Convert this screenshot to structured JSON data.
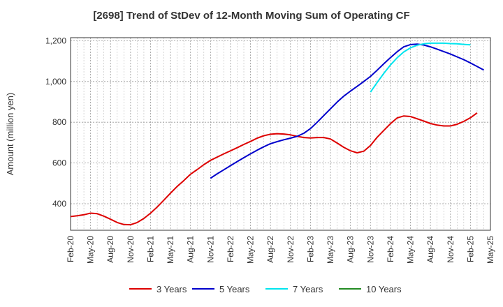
{
  "chart_data": {
    "type": "line",
    "title": "[2698]  Trend of StDev of 12-Month Moving Sum of Operating CF",
    "ylabel": "Amount (million yen)",
    "xlabel": "",
    "ylim": [
      270,
      1215
    ],
    "yticks": [
      400,
      600,
      800,
      "1,000",
      "1,200"
    ],
    "ytick_values": [
      400,
      600,
      800,
      1000,
      1200
    ],
    "xticks": [
      "Feb-20",
      "May-20",
      "Aug-20",
      "Nov-20",
      "Feb-21",
      "May-21",
      "Aug-21",
      "Nov-21",
      "Feb-22",
      "May-22",
      "Aug-22",
      "Nov-22",
      "Feb-23",
      "May-23",
      "Aug-23",
      "Nov-23",
      "Feb-24",
      "May-24",
      "Aug-24",
      "Nov-24",
      "Feb-25",
      "May-25"
    ],
    "grid": true,
    "legend_position": "bottom",
    "series": [
      {
        "name": "3 Years",
        "color": "#dd0000",
        "start": "Feb-20",
        "values": [
          337,
          341,
          346,
          354,
          351,
          339,
          324,
          308,
          298,
          297,
          308,
          328,
          354,
          384,
          418,
          452,
          485,
          514,
          545,
          568,
          592,
          613,
          629,
          645,
          660,
          675,
          691,
          706,
          722,
          734,
          741,
          744,
          742,
          738,
          731,
          725,
          723,
          725,
          725,
          718,
          698,
          677,
          660,
          650,
          658,
          686,
          726,
          760,
          793,
          821,
          831,
          828,
          817,
          806,
          794,
          786,
          782,
          782,
          790,
          804,
          822,
          846
        ]
      },
      {
        "name": "5 Years",
        "color": "#0000cc",
        "start": "Nov-21",
        "values": [
          525,
          547,
          567,
          587,
          607,
          626,
          645,
          663,
          680,
          695,
          705,
          714,
          722,
          731,
          746,
          769,
          800,
          833,
          866,
          899,
          928,
          953,
          976,
          1000,
          1025,
          1055,
          1087,
          1117,
          1146,
          1170,
          1181,
          1183,
          1179,
          1170,
          1159,
          1147,
          1135,
          1121,
          1107,
          1091,
          1074,
          1056
        ]
      },
      {
        "name": "7 Years",
        "color": "#00e5ee",
        "start": "Nov-23",
        "values": [
          948,
          995,
          1040,
          1081,
          1116,
          1145,
          1165,
          1178,
          1185,
          1188,
          1188,
          1188,
          1186,
          1185,
          1182,
          1180
        ]
      },
      {
        "name": "10 Years",
        "color": "#228b22",
        "start": "",
        "values": []
      }
    ]
  }
}
